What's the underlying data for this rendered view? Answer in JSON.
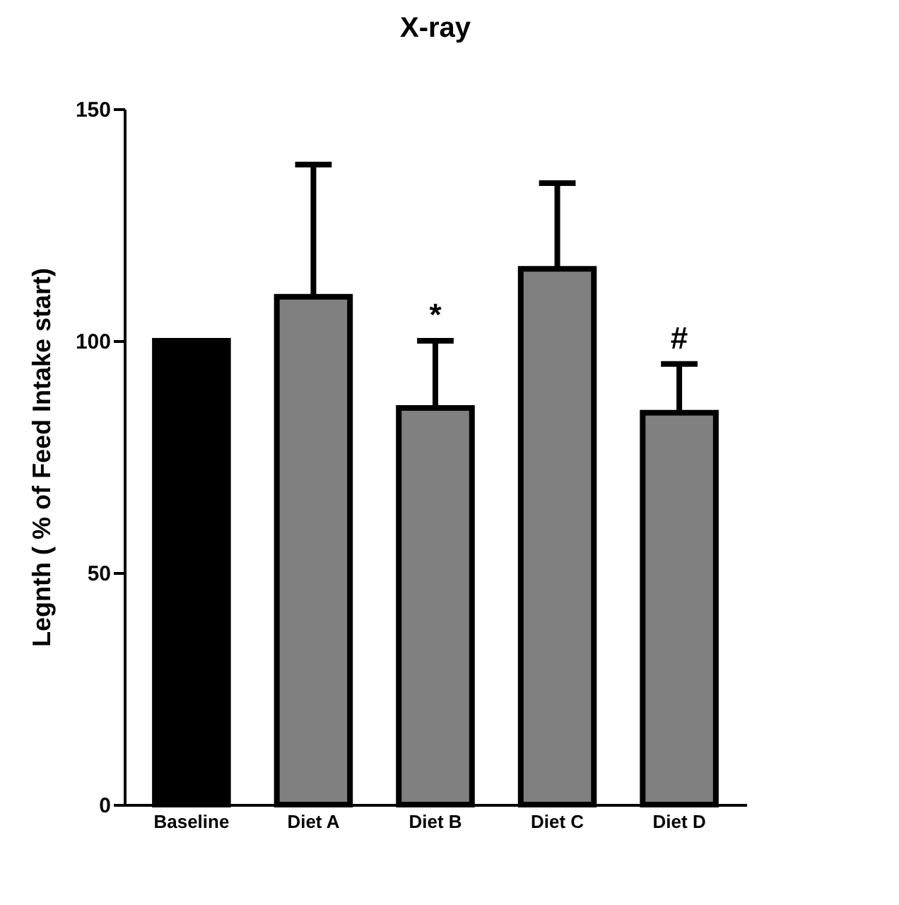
{
  "chart_data": {
    "type": "bar",
    "title": "X-ray",
    "ylabel": "Legnth ( % of Feed Intake start)",
    "categories": [
      "Baseline",
      "Diet A",
      "Diet B",
      "Diet C",
      "Diet D"
    ],
    "values": [
      100,
      109.5,
      85.5,
      115.5,
      84.5
    ],
    "colors": [
      "#000000",
      "#808080",
      "#808080",
      "#808080",
      "#808080"
    ],
    "errors": [
      null,
      [
        109.5,
        138
      ],
      [
        85.5,
        100
      ],
      [
        115.5,
        134
      ],
      [
        84.5,
        95
      ]
    ],
    "ylim": [
      0,
      150
    ],
    "yticks": [
      0,
      50,
      100,
      150
    ],
    "grid": false,
    "annotations": [
      {
        "text": "*",
        "x": "Diet B",
        "y": 100
      },
      {
        "text": "#",
        "x": "Diet D",
        "y": 95
      }
    ]
  }
}
